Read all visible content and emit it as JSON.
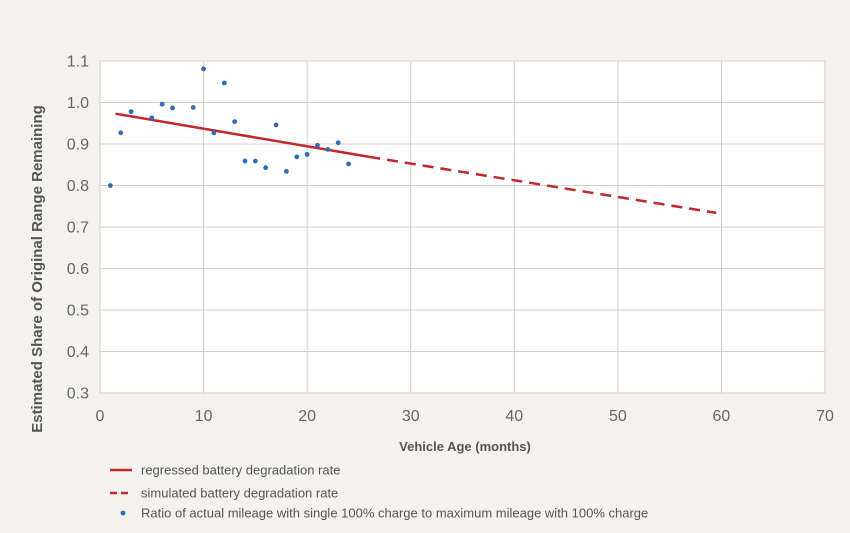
{
  "chart_data": {
    "type": "scatter",
    "xlabel": "Vehicle Age (months)",
    "ylabel": "Estimated Share of Original Range Remaining",
    "xlim": [
      0,
      70
    ],
    "ylim": [
      0.3,
      1.1
    ],
    "xticks": [
      0,
      10,
      20,
      30,
      40,
      50,
      60,
      70
    ],
    "yticks": [
      0.3,
      0.4,
      0.5,
      0.6,
      0.7,
      0.8,
      0.9,
      1.0,
      1.1
    ],
    "xtick_labels": [
      "0",
      "10",
      "20",
      "30",
      "40",
      "50",
      "60",
      "70"
    ],
    "ytick_labels": [
      "0.3",
      "0.4",
      "0.5",
      "0.6",
      "0.7",
      "0.8",
      "0.9",
      "1.0",
      "1.1"
    ],
    "grid": true,
    "legend_position": "bottom-left",
    "colors": {
      "line": "#c0282d",
      "points": "#2e6db4",
      "grid": "#cfcfcf",
      "background": "#ffffff",
      "page": "#f3f2ef"
    },
    "series": [
      {
        "name": "regressed battery degradation rate",
        "kind": "line",
        "style": "solid",
        "x": [
          1.5,
          26
        ],
        "y": [
          0.973,
          0.869
        ]
      },
      {
        "name": "simulated battery degradation rate",
        "kind": "line",
        "style": "dashed",
        "x": [
          26,
          59.5
        ],
        "y": [
          0.869,
          0.734
        ]
      },
      {
        "name": "Ratio of actual mileage with single 100% charge to maximum mileage with 100% charge",
        "kind": "scatter",
        "x": [
          1,
          2,
          3,
          5,
          6,
          7,
          9,
          10,
          11,
          12,
          13,
          14,
          15,
          16,
          17,
          18,
          19,
          20,
          21,
          22,
          23,
          24
        ],
        "y": [
          0.8,
          0.927,
          0.978,
          0.963,
          0.996,
          0.987,
          0.988,
          1.081,
          0.927,
          1.047,
          0.954,
          0.859,
          0.859,
          0.843,
          0.946,
          0.834,
          0.869,
          0.875,
          0.897,
          0.887,
          0.903,
          0.852
        ]
      }
    ]
  }
}
